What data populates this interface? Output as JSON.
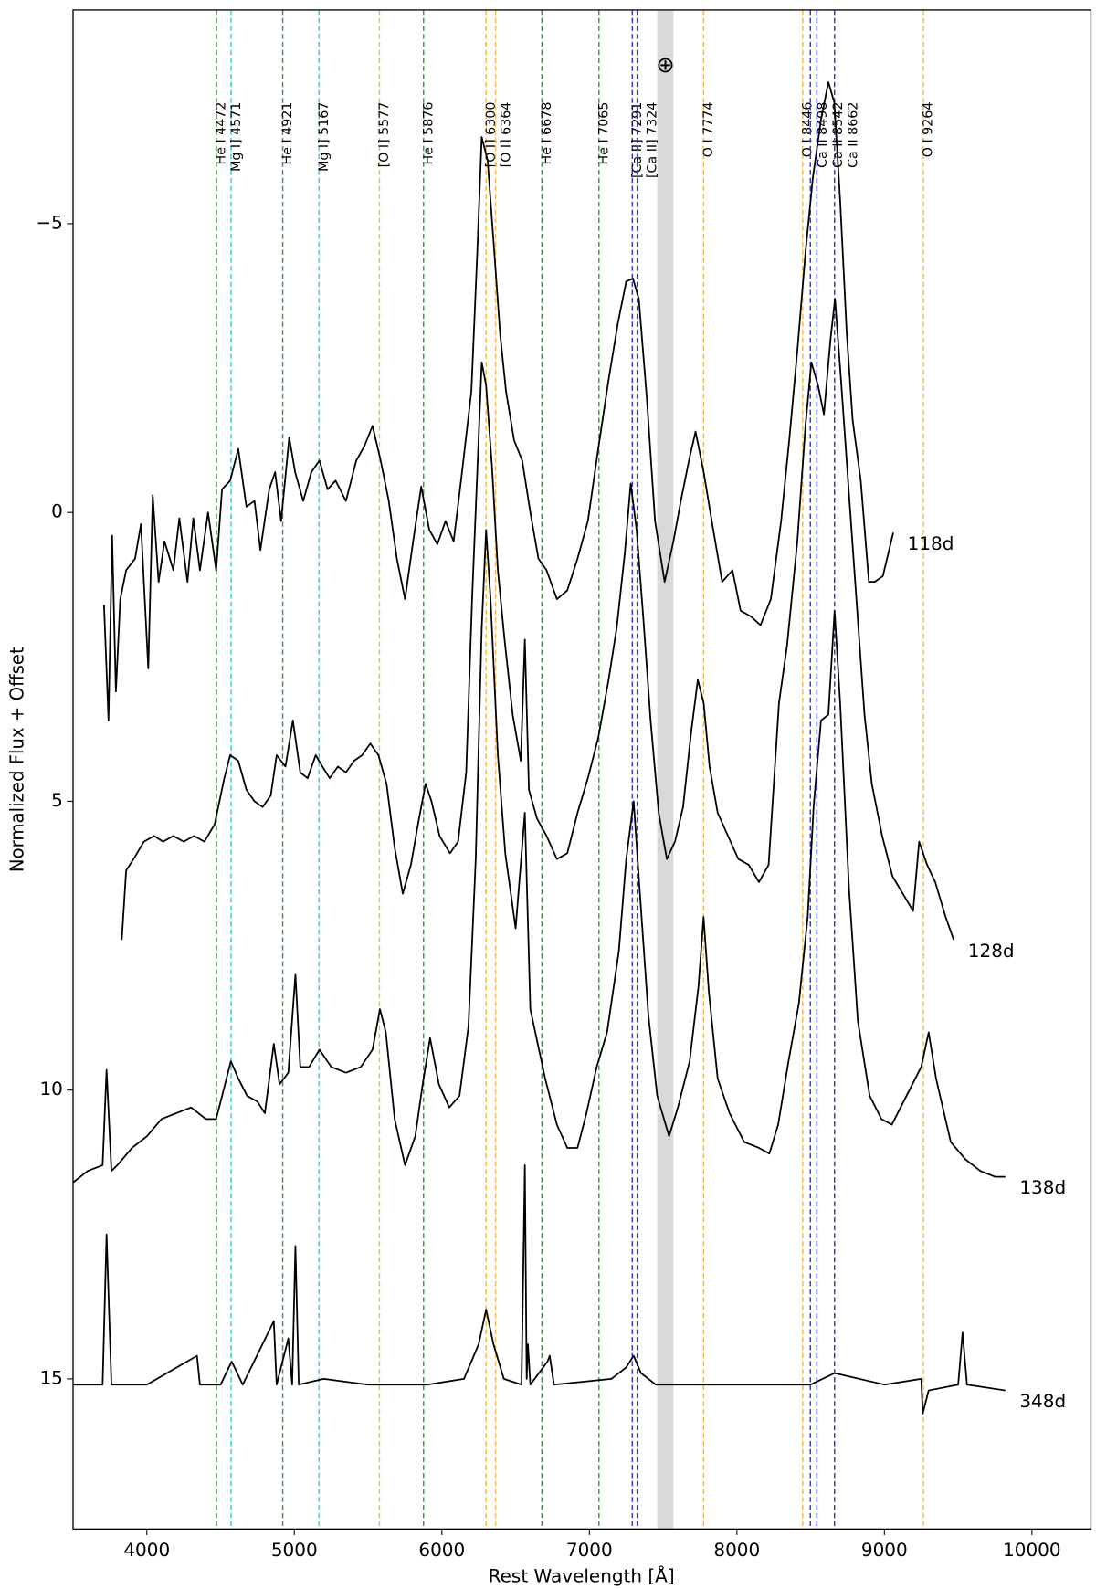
{
  "chart_data": {
    "type": "line",
    "xlabel": "Rest Wavelength [Å]",
    "ylabel": "Normalized Flux + Offset",
    "xlim": [
      3500,
      10400
    ],
    "ylim": [
      17.6,
      -8.7
    ],
    "xticks": [
      4000,
      5000,
      6000,
      7000,
      8000,
      9000,
      10000
    ],
    "yticks": [
      {
        "value": -5,
        "label": "−5"
      },
      0,
      5,
      10,
      15
    ],
    "band": [
      7460,
      7570
    ],
    "band_color": "#d9d9d9",
    "band_label": "⊕",
    "lines": [
      {
        "label": "He I 4472",
        "x": 4472,
        "color": "#3a9a3a"
      },
      {
        "label": "Mg I] 4571",
        "x": 4571,
        "color": "#22d8e0"
      },
      {
        "label": "He I 4921",
        "x": 4921,
        "color": "#3a9a3a"
      },
      {
        "label": "Mg I] 5167",
        "x": 5167,
        "color": "#22d8e0"
      },
      {
        "label": "[O I] 5577",
        "x": 5577,
        "color": "#f2b84b"
      },
      {
        "label": "He I 5876",
        "x": 5876,
        "color": "#3a9a3a"
      },
      {
        "label": "[O I] 6300",
        "x": 6300,
        "color": "#f2b84b"
      },
      {
        "label": "[O I] 6364",
        "x": 6364,
        "color": "#f2b84b"
      },
      {
        "label": "He I 6678",
        "x": 6678,
        "color": "#3a9a3a"
      },
      {
        "label": "He I 7065",
        "x": 7065,
        "color": "#3a9a3a"
      },
      {
        "label": "[Ca II] 7291",
        "x": 7291,
        "color": "#3535d8"
      },
      {
        "label": "[Ca II] 7324",
        "x": 7324,
        "color": "#3535d8"
      },
      {
        "label": "O I 7774",
        "x": 7774,
        "color": "#f2b84b"
      },
      {
        "label": "O I 8446",
        "x": 8446,
        "color": "#f2b84b"
      },
      {
        "label": "Ca II 8498",
        "x": 8498,
        "color": "#3535d8"
      },
      {
        "label": "Ca II 8542",
        "x": 8542,
        "color": "#3535d8"
      },
      {
        "label": "Ca II 8662",
        "x": 8662,
        "color": "#3535d8"
      },
      {
        "label": "O I 9264",
        "x": 9264,
        "color": "#f2b84b"
      }
    ],
    "series": [
      {
        "name": "118d",
        "color": "#000000",
        "x": [
          3710,
          3740,
          3765,
          3790,
          3820,
          3860,
          3920,
          3960,
          4010,
          4040,
          4080,
          4120,
          4180,
          4220,
          4275,
          4315,
          4360,
          4415,
          4470,
          4510,
          4565,
          4620,
          4675,
          4730,
          4770,
          4830,
          4870,
          4910,
          4965,
          5005,
          5060,
          5115,
          5170,
          5225,
          5280,
          5350,
          5420,
          5475,
          5530,
          5585,
          5640,
          5695,
          5750,
          5805,
          5860,
          5915,
          5970,
          6025,
          6080,
          6130,
          6200,
          6240,
          6270,
          6310,
          6350,
          6395,
          6435,
          6490,
          6545,
          6600,
          6655,
          6710,
          6780,
          6850,
          6920,
          6990,
          7060,
          7130,
          7195,
          7250,
          7295,
          7335,
          7390,
          7445,
          7510,
          7570,
          7620,
          7675,
          7720,
          7775,
          7830,
          7900,
          7970,
          8025,
          8095,
          8160,
          8230,
          8300,
          8355,
          8410,
          8465,
          8515,
          8570,
          8620,
          8660,
          8700,
          8745,
          8785,
          8840,
          8895,
          8935,
          8990,
          9060
        ],
        "values": [
          1.6,
          3.6,
          0.4,
          3.1,
          1.5,
          1.0,
          0.8,
          0.2,
          2.7,
          -0.3,
          1.2,
          0.5,
          1.0,
          0.1,
          1.2,
          0.1,
          1.0,
          0,
          1.0,
          -0.4,
          -0.55,
          -1.1,
          -0.1,
          -0.2,
          0.65,
          -0.4,
          -0.7,
          0.15,
          -1.3,
          -0.7,
          -0.2,
          -0.7,
          -0.9,
          -0.4,
          -0.55,
          -0.2,
          -0.9,
          -1.15,
          -1.5,
          -0.9,
          -0.2,
          0.8,
          1.5,
          0.5,
          -0.45,
          0.3,
          0.55,
          0.15,
          0.5,
          -0.55,
          -2.1,
          -4.5,
          -6.5,
          -6.1,
          -4.7,
          -3.1,
          -2.1,
          -1.25,
          -0.9,
          0,
          0.8,
          1.0,
          1.5,
          1.35,
          0.8,
          0.15,
          -1.1,
          -2.3,
          -3.3,
          -4.0,
          -4.05,
          -3.7,
          -1.95,
          0.15,
          1.2,
          0.5,
          -0.2,
          -0.9,
          -1.4,
          -0.7,
          0.15,
          1.2,
          1.0,
          1.7,
          1.8,
          1.95,
          1.5,
          0.15,
          -1.25,
          -2.8,
          -4.5,
          -5.8,
          -6.8,
          -7.45,
          -7.1,
          -5.4,
          -3.1,
          -1.6,
          -0.55,
          1.2,
          1.2,
          1.1,
          0.35
        ]
      },
      {
        "name": "128d",
        "color": "#000000",
        "x": [
          3830,
          3860,
          3910,
          3980,
          4050,
          4110,
          4180,
          4250,
          4320,
          4390,
          4460,
          4525,
          4565,
          4620,
          4675,
          4730,
          4785,
          4840,
          4880,
          4940,
          4990,
          5040,
          5090,
          5145,
          5190,
          5240,
          5295,
          5350,
          5405,
          5460,
          5515,
          5570,
          5625,
          5680,
          5735,
          5790,
          5845,
          5890,
          5930,
          5985,
          6055,
          6110,
          6165,
          6205,
          6245,
          6270,
          6300,
          6340,
          6380,
          6425,
          6480,
          6535,
          6563,
          6590,
          6645,
          6710,
          6780,
          6850,
          6920,
          6990,
          7060,
          7130,
          7185,
          7240,
          7280,
          7320,
          7365,
          7415,
          7470,
          7525,
          7580,
          7635,
          7690,
          7735,
          7775,
          7815,
          7870,
          7940,
          8010,
          8080,
          8150,
          8215,
          8285,
          8340,
          8410,
          8465,
          8505,
          8550,
          8590,
          8635,
          8665,
          8700,
          8755,
          8810,
          8865,
          8915,
          8985,
          9055,
          9125,
          9195,
          9235,
          9290,
          9345,
          9415,
          9470
        ],
        "values": [
          7.4,
          6.2,
          6.0,
          5.7,
          5.6,
          5.7,
          5.6,
          5.7,
          5.6,
          5.7,
          5.4,
          4.6,
          4.2,
          4.3,
          4.8,
          5.0,
          5.1,
          4.9,
          4.2,
          4.4,
          3.6,
          4.5,
          4.6,
          4.2,
          4.4,
          4.6,
          4.4,
          4.5,
          4.3,
          4.2,
          4.0,
          4.2,
          4.7,
          5.8,
          6.6,
          6.1,
          5.3,
          4.7,
          5.0,
          5.6,
          5.9,
          5.7,
          4.5,
          1.5,
          -1.0,
          -2.6,
          -2.2,
          -0.8,
          1.0,
          2.2,
          3.5,
          4.3,
          2.2,
          4.8,
          5.3,
          5.6,
          6.0,
          5.9,
          5.2,
          4.6,
          3.9,
          2.9,
          2.0,
          0.7,
          -0.5,
          0.3,
          1.8,
          3.6,
          5.2,
          6.0,
          5.7,
          5.1,
          3.8,
          2.9,
          3.3,
          4.4,
          5.2,
          5.6,
          6.0,
          6.1,
          6.4,
          6.1,
          3.3,
          2.3,
          0.5,
          -1.5,
          -2.6,
          -2.2,
          -1.7,
          -3.0,
          -3.7,
          -2.5,
          -0.5,
          1.5,
          3.5,
          4.7,
          5.6,
          6.3,
          6.6,
          6.9,
          5.7,
          6.1,
          6.4,
          7.0,
          7.4
        ]
      },
      {
        "name": "138d",
        "color": "#000000",
        "x": [
          3500,
          3600,
          3700,
          3727,
          3760,
          3800,
          3900,
          4000,
          4100,
          4200,
          4300,
          4400,
          4470,
          4520,
          4570,
          4620,
          4680,
          4750,
          4800,
          4861,
          4900,
          4959,
          5007,
          5040,
          5100,
          5170,
          5250,
          5350,
          5450,
          5530,
          5580,
          5620,
          5680,
          5750,
          5820,
          5870,
          5920,
          5980,
          6050,
          6120,
          6180,
          6230,
          6270,
          6300,
          6330,
          6380,
          6430,
          6500,
          6563,
          6600,
          6700,
          6780,
          6850,
          6920,
          6980,
          7050,
          7120,
          7200,
          7250,
          7300,
          7340,
          7400,
          7460,
          7540,
          7600,
          7680,
          7740,
          7774,
          7810,
          7870,
          7950,
          8050,
          8150,
          8220,
          8280,
          8350,
          8420,
          8480,
          8520,
          8570,
          8620,
          8662,
          8700,
          8760,
          8820,
          8900,
          8980,
          9050,
          9150,
          9250,
          9300,
          9350,
          9450,
          9550,
          9650,
          9750,
          9820
        ],
        "values": [
          11.6,
          11.4,
          11.3,
          9.65,
          11.4,
          11.3,
          11.0,
          10.8,
          10.5,
          10.4,
          10.3,
          10.5,
          10.5,
          10.0,
          9.5,
          9.8,
          10.1,
          10.2,
          10.4,
          9.2,
          9.9,
          9.7,
          8.0,
          9.6,
          9.6,
          9.3,
          9.6,
          9.7,
          9.6,
          9.3,
          8.6,
          9.0,
          10.5,
          11.3,
          10.8,
          9.9,
          9.1,
          9.9,
          10.3,
          10.1,
          8.9,
          6.0,
          2.0,
          0.3,
          1.5,
          4.2,
          5.9,
          7.2,
          5.2,
          8.6,
          9.8,
          10.6,
          11.0,
          11.0,
          10.4,
          9.6,
          9.0,
          7.6,
          6.0,
          5.0,
          6.5,
          8.7,
          10.1,
          10.8,
          10.3,
          9.5,
          8.2,
          7.0,
          8.3,
          9.8,
          10.4,
          10.9,
          11.0,
          11.1,
          10.6,
          9.5,
          8.5,
          7.0,
          5.1,
          3.6,
          3.5,
          1.7,
          3.3,
          6.5,
          8.8,
          10.1,
          10.5,
          10.6,
          10.1,
          9.6,
          9.0,
          9.8,
          10.9,
          11.2,
          11.4,
          11.5,
          11.5
        ]
      },
      {
        "name": "348d",
        "color": "#000000",
        "x": [
          3500,
          3700,
          3727,
          3760,
          4000,
          4340,
          4360,
          4500,
          4575,
          4650,
          4861,
          4880,
          4959,
          4985,
          5007,
          5030,
          5200,
          5500,
          5900,
          6150,
          6250,
          6300,
          6350,
          6420,
          6540,
          6563,
          6575,
          6583,
          6600,
          6716,
          6731,
          6760,
          7150,
          7250,
          7300,
          7350,
          7450,
          7800,
          8500,
          8662,
          9000,
          9250,
          9260,
          9300,
          9500,
          9530,
          9560,
          9820
        ],
        "values": [
          15.1,
          15.1,
          12.5,
          15.1,
          15.1,
          14.6,
          15.1,
          15.1,
          14.7,
          15.1,
          14.0,
          15.1,
          14.3,
          15.1,
          12.7,
          15.1,
          15.0,
          15.1,
          15.1,
          15.0,
          14.4,
          13.8,
          14.4,
          15.0,
          15.1,
          11.3,
          15.0,
          14.4,
          15.1,
          14.7,
          14.6,
          15.1,
          15.0,
          14.8,
          14.6,
          14.9,
          15.1,
          15.1,
          15.1,
          14.9,
          15.1,
          15.0,
          15.6,
          15.2,
          15.1,
          14.2,
          15.1,
          15.2
        ]
      }
    ]
  }
}
